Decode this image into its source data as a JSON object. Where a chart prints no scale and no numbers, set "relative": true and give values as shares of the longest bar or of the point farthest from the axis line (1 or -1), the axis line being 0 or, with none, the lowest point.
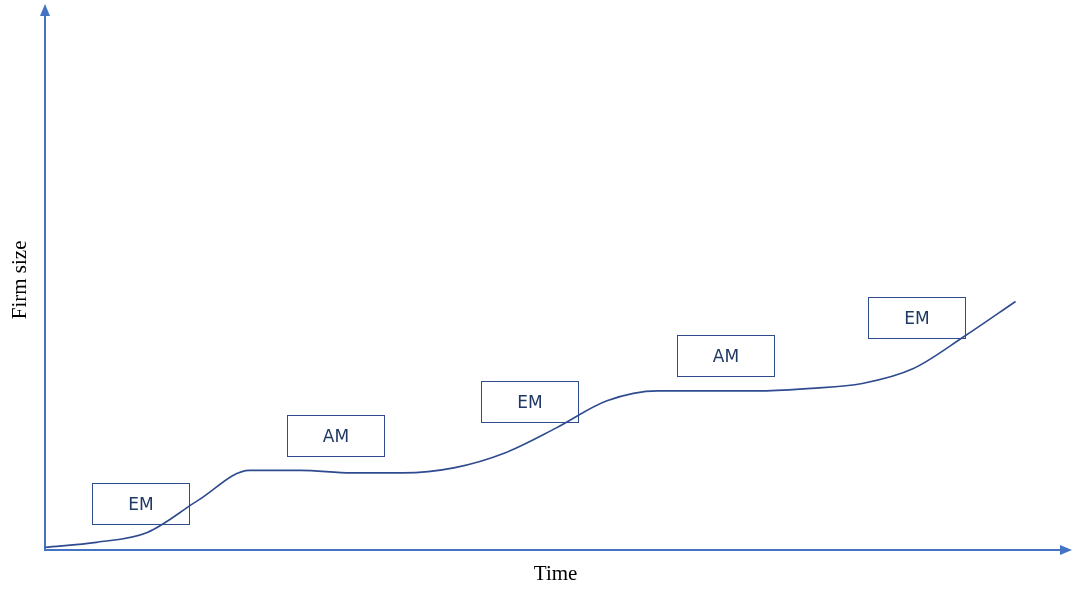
{
  "chart_data": {
    "type": "line",
    "relative": true,
    "xlabel": "Time",
    "ylabel": "Firm size",
    "grid": false,
    "legend": false,
    "marker": "none",
    "line_style": "solid",
    "categories": [
      null,
      null,
      null,
      null,
      null,
      null,
      null,
      null,
      null,
      null,
      null,
      null,
      null,
      null,
      null,
      null,
      null,
      null,
      null,
      null
    ],
    "series": [
      {
        "color": "#2f4b8f",
        "values": [
          0.01,
          0.03,
          0.07,
          0.2,
          0.32,
          0.32,
          0.31,
          0.31,
          0.33,
          0.39,
          0.49,
          0.6,
          0.64,
          0.64,
          0.64,
          0.65,
          0.67,
          0.73,
          0.86,
          1
        ]
      }
    ],
    "annotations": [
      "EM",
      "AM",
      "EM",
      "AM",
      "EM"
    ]
  }
}
